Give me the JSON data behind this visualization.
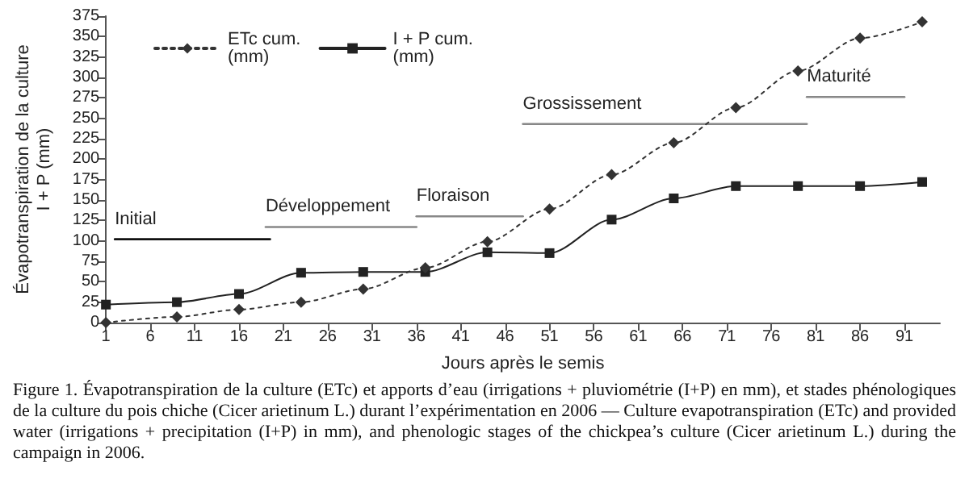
{
  "chart_data": {
    "type": "line",
    "xlabel": "Jours après le semis",
    "ylabel": "Évapotranspiration de la culture\nI + P (mm)",
    "xlim": [
      1,
      95
    ],
    "xticks": [
      1,
      6,
      11,
      16,
      21,
      26,
      31,
      36,
      41,
      46,
      51,
      56,
      61,
      66,
      71,
      76,
      81,
      86,
      91
    ],
    "ylim": [
      0,
      375
    ],
    "yticks": [
      0,
      25,
      50,
      75,
      100,
      125,
      150,
      175,
      200,
      225,
      250,
      275,
      300,
      325,
      350,
      375
    ],
    "grid": false,
    "legend": "top left",
    "series": [
      {
        "name": "ETc cum. (mm)",
        "color": "#333333",
        "marker": "diamond",
        "line_style": "dotted",
        "x": [
          1,
          9,
          16,
          23,
          30,
          37,
          44,
          51,
          58,
          65,
          72,
          79,
          86,
          93
        ],
        "values": [
          0,
          7,
          16,
          25,
          41,
          67,
          99,
          139,
          181,
          220,
          263,
          308,
          348,
          368
        ]
      },
      {
        "name": "I + P cum. (mm)",
        "color": "#222222",
        "marker": "square",
        "line_style": "solid",
        "x": [
          1,
          9,
          16,
          23,
          30,
          37,
          44,
          51,
          58,
          65,
          72,
          79,
          86,
          93
        ],
        "values": [
          22,
          25,
          35,
          61,
          62,
          62,
          86,
          85,
          126,
          152,
          167,
          167,
          167,
          172
        ]
      },
      {
        "name": "Initial",
        "color": "#111111",
        "marker": "none",
        "line_style": "solid",
        "x": [
          2,
          19.5
        ],
        "values": [
          102,
          102
        ]
      },
      {
        "name": "Développement",
        "color": "#888888",
        "marker": "none",
        "line_style": "solid",
        "x": [
          19,
          36
        ],
        "values": [
          117,
          117
        ]
      },
      {
        "name": "Floraison",
        "color": "#888888",
        "marker": "none",
        "line_style": "solid",
        "x": [
          36,
          48
        ],
        "values": [
          130,
          130
        ]
      },
      {
        "name": "Grossissement",
        "color": "#888888",
        "marker": "none",
        "line_style": "solid",
        "x": [
          48,
          80
        ],
        "values": [
          243,
          243
        ]
      },
      {
        "name": "Maturité",
        "color": "#888888",
        "marker": "none",
        "line_style": "solid",
        "x": [
          80,
          91
        ],
        "values": [
          276,
          276
        ]
      }
    ],
    "annotations": [
      "Figure 1. Évapotranspiration de la culture (ETc) et apports d’eau (irrigations + pluviométrie (I+P) en mm), et stades phénologiques de la culture du pois chiche (Cicer arietinum L.) durant l’expérimentation en 2006 — Culture evapotranspiration (ETc) and provided water (irrigations + precipitation (I+P) in mm), and phenologic stages of the chickpea’s culture (Cicer arietinum L.) during the campaign in 2006."
    ]
  }
}
